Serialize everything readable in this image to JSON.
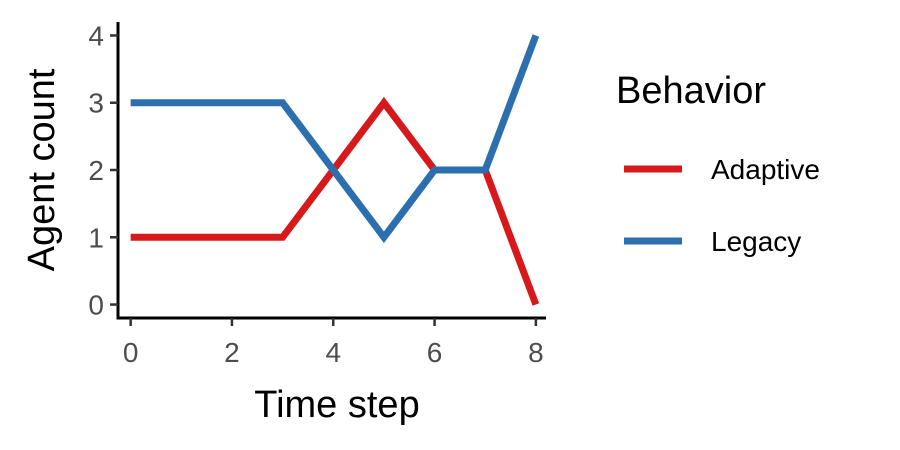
{
  "chart_data": {
    "type": "line",
    "title": "",
    "xlabel": "Time step",
    "ylabel": "Agent count",
    "xlim": [
      -0.25,
      8.2
    ],
    "ylim": [
      -0.2,
      4.2
    ],
    "x_ticks": [
      0,
      2,
      4,
      6,
      8
    ],
    "y_ticks": [
      0,
      1,
      2,
      3,
      4
    ],
    "grid": false,
    "legend": {
      "title": "Behavior",
      "placement": "right"
    },
    "series": [
      {
        "name": "Adaptive",
        "color": "#d7191c",
        "x": [
          0,
          1,
          2,
          3,
          4,
          5,
          6,
          7,
          8
        ],
        "y": [
          1,
          1,
          1,
          1,
          2,
          3,
          2,
          2,
          0
        ]
      },
      {
        "name": "Legacy",
        "color": "#2c6fae",
        "x": [
          0,
          1,
          2,
          3,
          4,
          5,
          6,
          7,
          8
        ],
        "y": [
          3,
          3,
          3,
          3,
          2,
          1,
          2,
          2,
          4
        ]
      }
    ]
  }
}
